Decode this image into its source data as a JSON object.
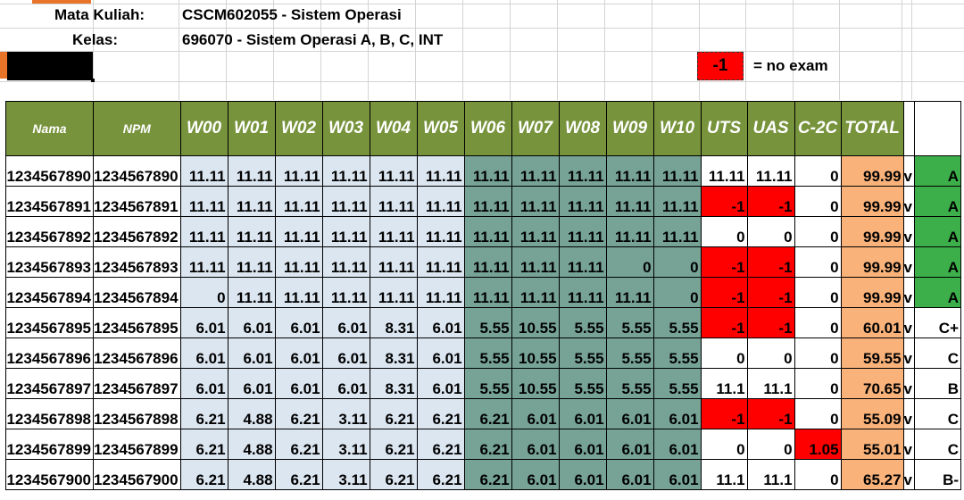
{
  "header": {
    "course_label": "Mata Kuliah:",
    "course_value": "CSCM602055 - Sistem Operasi",
    "class_label": "Kelas:",
    "class_value": "696070 - Sistem Operasi A, B, C, INT"
  },
  "legend": {
    "value": "-1",
    "text": "= no exam"
  },
  "columns": [
    "Nama",
    "NPM",
    "W00",
    "W01",
    "W02",
    "W03",
    "W04",
    "W05",
    "W06",
    "W07",
    "W08",
    "W09",
    "W10",
    "UTS",
    "UAS",
    "C-2C",
    "TOTAL",
    "",
    ""
  ],
  "colors": {
    "header_green": "#77933c",
    "light_blue": "#dce6f1",
    "teal": "#76a396",
    "orange": "#f9b27a",
    "red": "#ff0000",
    "grade_green": "#3daf4a"
  },
  "rows": [
    {
      "nama": "1234567890",
      "npm": "1234567890",
      "w": [
        "11.11",
        "11.11",
        "11.11",
        "11.11",
        "11.11",
        "11.11",
        "11.11",
        "11.11",
        "11.11",
        "11.11",
        "11.11"
      ],
      "uts": "11.11",
      "uas": "11.11",
      "c2c": "0",
      "total": "99.99",
      "gap": "v",
      "grade": "A"
    },
    {
      "nama": "1234567891",
      "npm": "1234567891",
      "w": [
        "11.11",
        "11.11",
        "11.11",
        "11.11",
        "11.11",
        "11.11",
        "11.11",
        "11.11",
        "11.11",
        "11.11",
        "11.11"
      ],
      "uts": "-1",
      "uas": "-1",
      "c2c": "0",
      "total": "99.99",
      "gap": "v",
      "grade": "A"
    },
    {
      "nama": "1234567892",
      "npm": "1234567892",
      "w": [
        "11.11",
        "11.11",
        "11.11",
        "11.11",
        "11.11",
        "11.11",
        "11.11",
        "11.11",
        "11.11",
        "11.11",
        "11.11"
      ],
      "uts": "0",
      "uas": "0",
      "c2c": "0",
      "total": "99.99",
      "gap": "v",
      "grade": "A"
    },
    {
      "nama": "1234567893",
      "npm": "1234567893",
      "w": [
        "11.11",
        "11.11",
        "11.11",
        "11.11",
        "11.11",
        "11.11",
        "11.11",
        "11.11",
        "11.11",
        "0",
        "0"
      ],
      "uts": "-1",
      "uas": "-1",
      "c2c": "0",
      "total": "99.99",
      "gap": "v",
      "grade": "A"
    },
    {
      "nama": "1234567894",
      "npm": "1234567894",
      "w": [
        "0",
        "11.11",
        "11.11",
        "11.11",
        "11.11",
        "11.11",
        "11.11",
        "11.11",
        "11.11",
        "11.11",
        "0"
      ],
      "uts": "-1",
      "uas": "-1",
      "c2c": "0",
      "total": "99.99",
      "gap": "v",
      "grade": "A"
    },
    {
      "nama": "1234567895",
      "npm": "1234567895",
      "w": [
        "6.01",
        "6.01",
        "6.01",
        "6.01",
        "8.31",
        "6.01",
        "5.55",
        "10.55",
        "5.55",
        "5.55",
        "5.55"
      ],
      "uts": "-1",
      "uas": "-1",
      "c2c": "0",
      "total": "60.01",
      "gap": "v",
      "grade": "C+"
    },
    {
      "nama": "1234567896",
      "npm": "1234567896",
      "w": [
        "6.01",
        "6.01",
        "6.01",
        "6.01",
        "8.31",
        "6.01",
        "5.55",
        "10.55",
        "5.55",
        "5.55",
        "5.55"
      ],
      "uts": "0",
      "uas": "0",
      "c2c": "0",
      "total": "59.55",
      "gap": "v",
      "grade": "C"
    },
    {
      "nama": "1234567897",
      "npm": "1234567897",
      "w": [
        "6.01",
        "6.01",
        "6.01",
        "6.01",
        "8.31",
        "6.01",
        "5.55",
        "10.55",
        "5.55",
        "5.55",
        "5.55"
      ],
      "uts": "11.1",
      "uas": "11.1",
      "c2c": "0",
      "total": "70.65",
      "gap": "v",
      "grade": "B"
    },
    {
      "nama": "1234567898",
      "npm": "1234567898",
      "w": [
        "6.21",
        "4.88",
        "6.21",
        "3.11",
        "6.21",
        "6.21",
        "6.21",
        "6.01",
        "6.01",
        "6.01",
        "6.01"
      ],
      "uts": "-1",
      "uas": "-1",
      "c2c": "0",
      "total": "55.09",
      "gap": "v",
      "grade": "C"
    },
    {
      "nama": "1234567899",
      "npm": "1234567899",
      "w": [
        "6.21",
        "4.88",
        "6.21",
        "3.11",
        "6.21",
        "6.21",
        "6.21",
        "6.01",
        "6.01",
        "6.01",
        "6.01"
      ],
      "uts": "0",
      "uas": "0",
      "c2c": "1.05",
      "total": "55.01",
      "gap": "v",
      "grade": "C"
    },
    {
      "nama": "1234567900",
      "npm": "1234567900",
      "w": [
        "6.21",
        "4.88",
        "6.21",
        "3.11",
        "6.21",
        "6.21",
        "6.21",
        "6.01",
        "6.01",
        "6.01",
        "6.01"
      ],
      "uts": "11.1",
      "uas": "11.1",
      "c2c": "0",
      "total": "65.27",
      "gap": "v",
      "grade": "B-"
    }
  ]
}
